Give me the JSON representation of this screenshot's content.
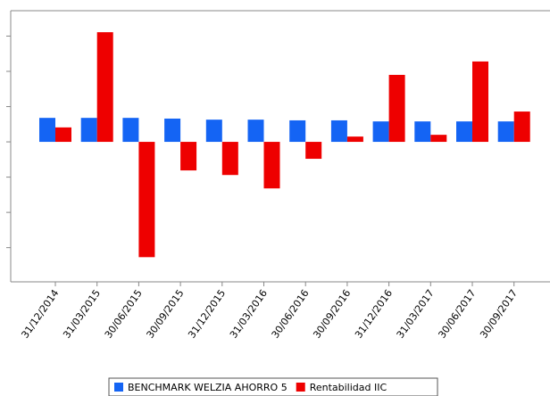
{
  "chart_data": {
    "type": "bar",
    "categories": [
      "31/12/2014",
      "31/03/2015",
      "30/06/2015",
      "30/09/2015",
      "31/12/2015",
      "31/03/2016",
      "30/06/2016",
      "30/09/2016",
      "31/12/2016",
      "31/03/2017",
      "30/06/2017",
      "30/09/2017"
    ],
    "series": [
      {
        "name": "BENCHMARK WELZIA AHORRO 5",
        "color": "#1464f4",
        "values": [
          0.68,
          0.68,
          0.68,
          0.66,
          0.63,
          0.63,
          0.61,
          0.61,
          0.58,
          0.58,
          0.58,
          0.58
        ]
      },
      {
        "name": "Rentabilidad IIC",
        "color": "#ee0000",
        "values": [
          0.41,
          3.11,
          -3.27,
          -0.81,
          -0.94,
          -1.32,
          -0.48,
          0.15,
          1.9,
          0.2,
          2.28,
          0.86
        ]
      }
    ],
    "ylim": [
      -3.97,
      3.72
    ],
    "yticks": [
      -3,
      -2,
      -1,
      0,
      1,
      2,
      3
    ],
    "legend": "bottom"
  }
}
